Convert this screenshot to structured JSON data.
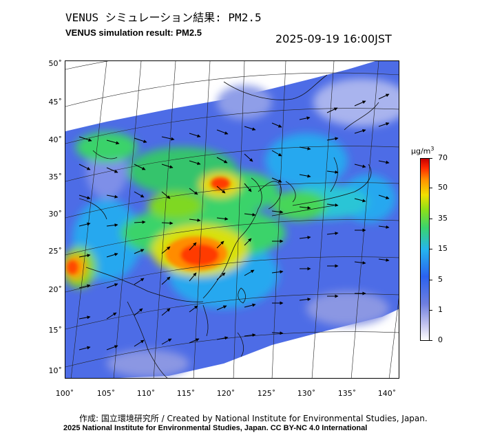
{
  "title": {
    "jp": "VENUS シミュレーション結果: PM2.5",
    "en": "VENUS simulation result: PM2.5"
  },
  "timestamp": "2025-09-19 16:00JST",
  "axes": {
    "lat_labels": [
      "50˚",
      "45˚",
      "40˚",
      "35˚",
      "30˚",
      "25˚",
      "20˚",
      "15˚",
      "10˚"
    ],
    "lon_labels": [
      "100˚",
      "105˚",
      "110˚",
      "115˚",
      "120˚",
      "125˚",
      "130˚",
      "135˚",
      "140˚"
    ]
  },
  "colorbar": {
    "unit_prefix": "μg/m",
    "unit_sup": "3",
    "ticks": [
      "70",
      "50",
      "35",
      "15",
      "5",
      "1",
      "0"
    ]
  },
  "credits": {
    "line1": "作成: 国立環境研究所 / Created by National Institute for Environmental Studies, Japan.",
    "line2": "2025 National Institute for Environmental Studies, Japan. CC BY-NC 4.0 International"
  },
  "colors": {
    "low": "#5a6fe0",
    "mid": "#25b5ee",
    "green": "#3ad46e",
    "high": "#ff2a00",
    "peak": "#c80000"
  }
}
